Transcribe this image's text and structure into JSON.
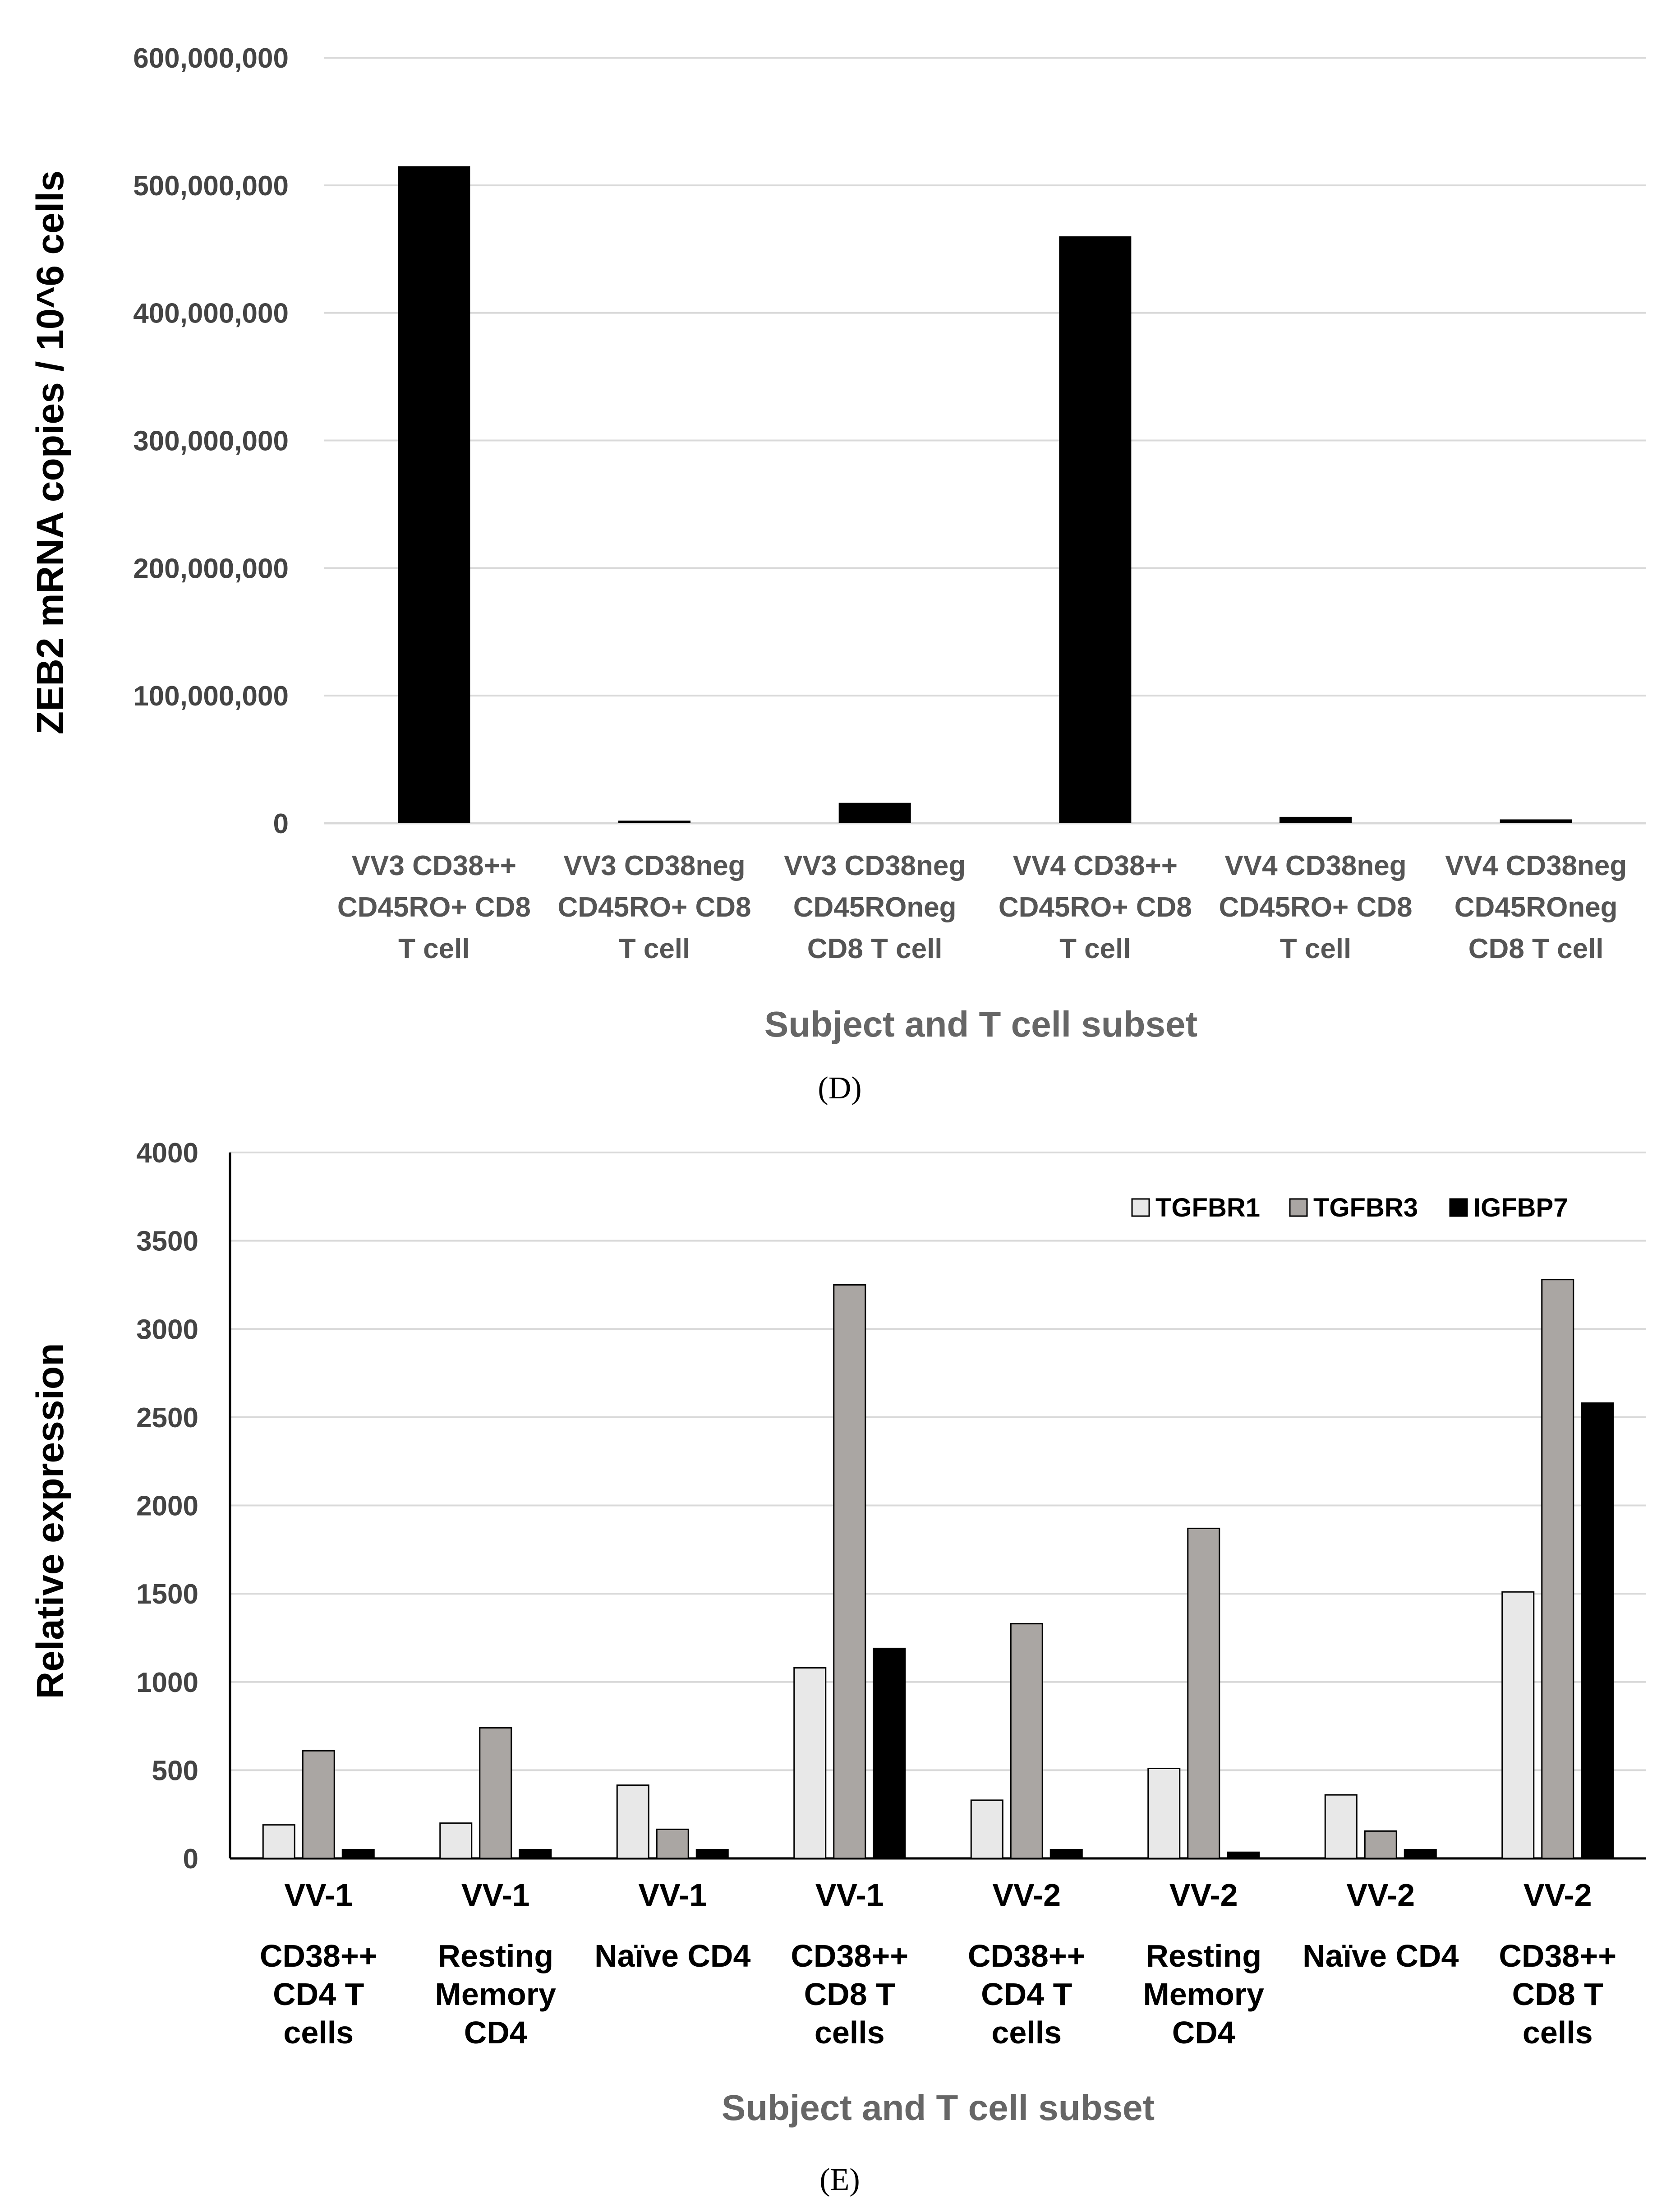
{
  "chart_data": [
    {
      "panel": "(D)",
      "type": "bar",
      "title": "",
      "ylabel": "ZEB2 mRNA copies / 10^6 cells",
      "xlabel": "Subject and T cell subset",
      "ylim": [
        0,
        600000000
      ],
      "yticks": [
        "0",
        "100,000,000",
        "200,000,000",
        "300,000,000",
        "400,000,000",
        "500,000,000",
        "600,000,000"
      ],
      "categories": [
        [
          "VV3 CD38++",
          "CD45RO+ CD8",
          "T cell"
        ],
        [
          "VV3 CD38neg",
          "CD45RO+ CD8",
          "T cell"
        ],
        [
          "VV3 CD38neg",
          "CD45ROneg",
          "CD8 T cell"
        ],
        [
          "VV4 CD38++",
          "CD45RO+ CD8",
          "T cell"
        ],
        [
          "VV4 CD38neg",
          "CD45RO+ CD8",
          "T cell"
        ],
        [
          "VV4 CD38neg",
          "CD45ROneg",
          "CD8 T cell"
        ]
      ],
      "values": [
        515000000,
        2000000,
        16000000,
        460000000,
        5000000,
        3000000
      ],
      "bar_color": "#000000",
      "grid": true
    },
    {
      "panel": "(E)",
      "type": "bar",
      "title": "",
      "ylabel": "Relative expression",
      "xlabel": "Subject and T cell subset",
      "ylim": [
        0,
        4000
      ],
      "yticks": [
        "0",
        "500",
        "1000",
        "1500",
        "2000",
        "2500",
        "3000",
        "3500",
        "4000"
      ],
      "categories": [
        [
          "VV-1",
          "CD38++",
          "CD4 T",
          "cells"
        ],
        [
          "VV-1",
          "Resting",
          "Memory",
          "CD4"
        ],
        [
          "VV-1",
          "Naïve CD4"
        ],
        [
          "VV-1",
          "CD38++",
          "CD8 T",
          "cells"
        ],
        [
          "VV-2",
          "CD38++",
          "CD4 T",
          "cells"
        ],
        [
          "VV-2",
          "Resting",
          "Memory",
          "CD4"
        ],
        [
          "VV-2",
          "Naïve CD4"
        ],
        [
          "VV-2",
          "CD38++",
          "CD8 T",
          "cells"
        ]
      ],
      "series": [
        {
          "name": "TGFBR1",
          "color": "#e8e8e8",
          "values": [
            190,
            200,
            415,
            1080,
            330,
            510,
            360,
            1510
          ]
        },
        {
          "name": "TGFBR3",
          "color": "#aaa6a3",
          "values": [
            610,
            740,
            165,
            3250,
            1330,
            1870,
            155,
            3280
          ]
        },
        {
          "name": "IGFBP7",
          "color": "#000000",
          "values": [
            50,
            50,
            50,
            1190,
            50,
            35,
            50,
            2580
          ]
        }
      ],
      "legend_position": "top-right",
      "grid": true
    }
  ]
}
